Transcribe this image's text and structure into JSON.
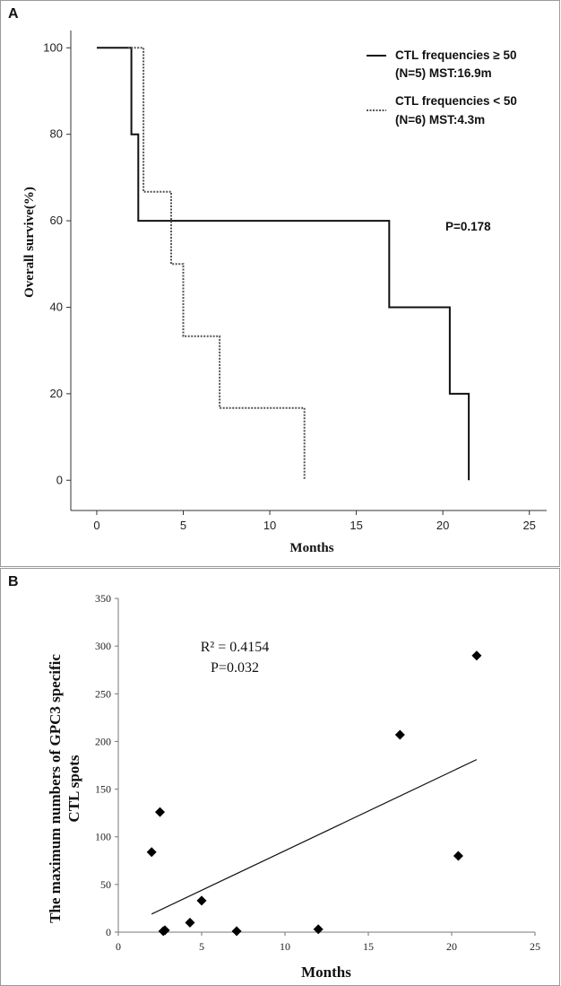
{
  "chart_data": [
    {
      "panel_label": "A",
      "type": "line",
      "subtype": "kaplan-meier step",
      "xlabel": "Months",
      "ylabel": "Overall survive(%)",
      "xlim": [
        -1.5,
        26
      ],
      "ylim": [
        -7,
        104
      ],
      "xticks": [
        0,
        5,
        10,
        15,
        20,
        25
      ],
      "yticks": [
        0,
        20,
        40,
        60,
        80,
        100
      ],
      "legend_position": "top-right",
      "annotation": "P=0.178",
      "series": [
        {
          "name": "CTL frequencies ≥ 50",
          "detail": "(N=5)  MST:16.9m",
          "style": "solid",
          "color": "#111111",
          "x": [
            0,
            2.0,
            2.0,
            2.4,
            2.4,
            16.9,
            16.9,
            20.4,
            20.4,
            21.5,
            21.5
          ],
          "y": [
            100,
            100,
            80,
            80,
            60,
            60,
            40,
            40,
            20,
            20,
            0
          ]
        },
        {
          "name": "CTL frequencies < 50",
          "detail": "(N=6)  MST:4.3m",
          "style": "dotted",
          "color": "#555555",
          "x": [
            1.8,
            2.7,
            2.7,
            4.3,
            4.3,
            5.0,
            5.0,
            7.1,
            7.1,
            12.0,
            12.0
          ],
          "y": [
            100,
            100,
            66.7,
            66.7,
            50,
            50,
            33.3,
            33.3,
            16.7,
            16.7,
            0
          ]
        }
      ]
    },
    {
      "panel_label": "B",
      "type": "scatter",
      "xlabel": "Months",
      "ylabel_line1": "The maximum numbers of GPC3 specific",
      "ylabel_line2": "CTL spots",
      "xlim": [
        0,
        25
      ],
      "ylim": [
        0,
        350
      ],
      "xticks": [
        0,
        5,
        10,
        15,
        20,
        25
      ],
      "yticks": [
        0,
        50,
        100,
        150,
        200,
        250,
        300,
        350
      ],
      "annotation_r2": "R² = 0.4154",
      "annotation_p": "P=0.032",
      "points": [
        {
          "x": 2.0,
          "y": 84
        },
        {
          "x": 2.5,
          "y": 126
        },
        {
          "x": 2.7,
          "y": 1
        },
        {
          "x": 2.8,
          "y": 2
        },
        {
          "x": 4.3,
          "y": 10
        },
        {
          "x": 5.0,
          "y": 33
        },
        {
          "x": 7.1,
          "y": 1
        },
        {
          "x": 12.0,
          "y": 3
        },
        {
          "x": 16.9,
          "y": 207
        },
        {
          "x": 20.4,
          "y": 80
        },
        {
          "x": 21.5,
          "y": 290
        }
      ],
      "trendline": {
        "x": [
          2.0,
          21.5
        ],
        "y": [
          19,
          181
        ]
      }
    }
  ]
}
